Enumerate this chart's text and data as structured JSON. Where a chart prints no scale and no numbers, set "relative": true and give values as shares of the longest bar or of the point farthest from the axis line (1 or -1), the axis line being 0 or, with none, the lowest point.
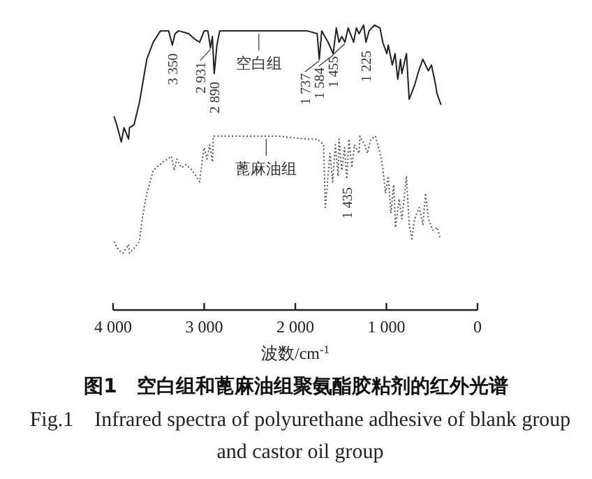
{
  "chart_data": {
    "type": "line",
    "title": "图1　空白组和蓖麻油组聚氨酯胶粘剂的红外光谱",
    "subtitle": "Fig.1　Infrared spectra of polyurethane adhesive of blank group and castor oil group",
    "xlabel": "波数/cm$^{-1}$",
    "relative": true,
    "xlim": [
      4000,
      0
    ],
    "xticks": [
      {
        "value": 4000,
        "label": "4 000"
      },
      {
        "value": 3000,
        "label": "3 000"
      },
      {
        "value": 2000,
        "label": "2 000"
      },
      {
        "value": 1000,
        "label": "1 000"
      },
      0
    ],
    "annotations": [
      {
        "text": "3 350",
        "x": 3350,
        "y": 0.93
      },
      {
        "text": "2 931",
        "x": 2931,
        "y": 0.92
      },
      {
        "text": "2 890",
        "x": 2890,
        "y": 0.83
      },
      {
        "text": "1 737",
        "x": 1737,
        "y": 0.88
      },
      {
        "text": "1 584",
        "x": 1584,
        "y": 0.9
      },
      {
        "text": "1 455",
        "x": 1455,
        "y": 0.94
      },
      {
        "text": "1 225",
        "x": 1225,
        "y": 0.94
      },
      {
        "text": "1 435",
        "x": 1435,
        "y": 0.46
      }
    ],
    "series": [
      {
        "name": "空白组",
        "color": "#231f20",
        "line_style": "solid",
        "x": [
          3990,
          3960,
          3910,
          3880,
          3830,
          3820,
          3770,
          3710,
          3630,
          3560,
          3480,
          3390,
          3350,
          3320,
          3280,
          3170,
          3100,
          3050,
          3000,
          2960,
          2931,
          2910,
          2890,
          2860,
          2830,
          2790,
          2410,
          2130,
          2020,
          1870,
          1760,
          1737,
          1710,
          1640,
          1584,
          1550,
          1520,
          1490,
          1455,
          1420,
          1360,
          1330,
          1300,
          1250,
          1225,
          1190,
          1130,
          1070,
          1040,
          995,
          980,
          935,
          905,
          875,
          845,
          830,
          780,
          750,
          690,
          645,
          600,
          540,
          505,
          460,
          445,
          400
        ],
        "values": [
          0.68,
          0.65,
          0.59,
          0.64,
          0.6,
          0.64,
          0.65,
          0.73,
          0.88,
          0.94,
          0.98,
          0.98,
          0.93,
          0.97,
          0.98,
          0.97,
          0.95,
          0.94,
          0.98,
          0.98,
          0.92,
          0.96,
          0.83,
          0.93,
          0.98,
          0.98,
          0.98,
          0.98,
          0.98,
          0.98,
          0.97,
          0.88,
          0.98,
          0.94,
          0.9,
          0.99,
          0.94,
          0.96,
          0.94,
          0.99,
          0.94,
          0.99,
          0.97,
          1.0,
          0.94,
          0.98,
          1.0,
          0.99,
          0.94,
          0.9,
          0.93,
          0.86,
          0.9,
          0.81,
          0.88,
          0.83,
          0.9,
          0.74,
          0.79,
          0.84,
          0.88,
          0.84,
          0.86,
          0.79,
          0.76,
          0.72
        ]
      },
      {
        "name": "蓖麻油组",
        "color": "#555555",
        "line_style": "dotted",
        "x": [
          3990,
          3940,
          3890,
          3830,
          3820,
          3760,
          3710,
          3680,
          3630,
          3560,
          3450,
          3400,
          3360,
          3330,
          3300,
          3250,
          3200,
          3130,
          3050,
          3020,
          3000,
          2970,
          2940,
          2910,
          2900,
          2790,
          2180,
          1870,
          1760,
          1690,
          1670,
          1620,
          1590,
          1560,
          1530,
          1520,
          1490,
          1460,
          1435,
          1410,
          1380,
          1350,
          1300,
          1290,
          1240,
          1210,
          1170,
          1120,
          1070,
          1040,
          1010,
          980,
          950,
          920,
          900,
          860,
          830,
          780,
          750,
          720,
          690,
          640,
          600,
          570,
          540,
          490,
          440,
          410
        ],
        "values": [
          0.24,
          0.21,
          0.2,
          0.23,
          0.2,
          0.22,
          0.24,
          0.32,
          0.41,
          0.49,
          0.52,
          0.53,
          0.54,
          0.49,
          0.53,
          0.5,
          0.51,
          0.49,
          0.45,
          0.53,
          0.57,
          0.53,
          0.58,
          0.52,
          0.61,
          0.61,
          0.61,
          0.6,
          0.6,
          0.58,
          0.36,
          0.55,
          0.45,
          0.58,
          0.47,
          0.6,
          0.49,
          0.57,
          0.46,
          0.6,
          0.5,
          0.58,
          0.55,
          0.61,
          0.58,
          0.55,
          0.6,
          0.61,
          0.55,
          0.5,
          0.41,
          0.47,
          0.34,
          0.44,
          0.29,
          0.39,
          0.32,
          0.47,
          0.3,
          0.25,
          0.32,
          0.36,
          0.3,
          0.41,
          0.32,
          0.28,
          0.29,
          0.25
        ]
      }
    ]
  }
}
